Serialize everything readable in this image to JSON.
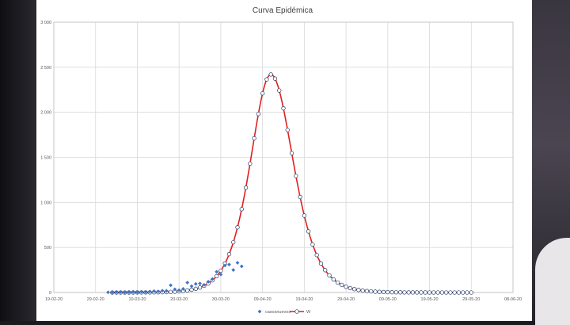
{
  "chart_data": {
    "type": "scatter",
    "title": "Curva Epidémica",
    "xlabel": "",
    "ylabel": "",
    "ylim": [
      0,
      3000
    ],
    "yticks": [
      0,
      500,
      1000,
      1500,
      2000,
      2500,
      3000
    ],
    "ytick_labels": [
      "0",
      "500",
      "1 000",
      "1 500",
      "2 000",
      "2 500",
      "3 000"
    ],
    "xlim": [
      "2020-02-19",
      "2020-06-08"
    ],
    "xticks": [
      "2020-02-19",
      "2020-02-29",
      "2020-03-10",
      "2020-03-20",
      "2020-03-30",
      "2020-04-09",
      "2020-04-19",
      "2020-04-29",
      "2020-05-09",
      "2020-05-19",
      "2020-05-29",
      "2020-06-08"
    ],
    "xtick_labels": [
      "19-02-20",
      "29-02-20",
      "10-03-20",
      "20-03-20",
      "30-03-20",
      "09-04-20",
      "19-04-20",
      "29-04-20",
      "09-05-20",
      "19-05-20",
      "29-05-20",
      "08-06-20"
    ],
    "grid": true,
    "legend_position": "bottom",
    "model": {
      "shape": "asymmetric-logistic-peak",
      "peak": 2420,
      "peak_date": "2020-04-11",
      "rise_scale_days": 3.3,
      "fall_scale_days": 3.6,
      "dates_start": "2020-03-04",
      "dates_end": "2020-05-29"
    },
    "series": [
      {
        "name": "casosnuevos",
        "marker": "diamond",
        "color": "#4472c4",
        "points": [
          [
            "2020-03-03",
            2
          ],
          [
            "2020-03-04",
            1
          ],
          [
            "2020-03-05",
            3
          ],
          [
            "2020-03-06",
            5
          ],
          [
            "2020-03-07",
            2
          ],
          [
            "2020-03-08",
            4
          ],
          [
            "2020-03-09",
            6
          ],
          [
            "2020-03-10",
            3
          ],
          [
            "2020-03-11",
            8
          ],
          [
            "2020-03-12",
            5
          ],
          [
            "2020-03-13",
            10
          ],
          [
            "2020-03-14",
            15
          ],
          [
            "2020-03-15",
            12
          ],
          [
            "2020-03-16",
            20
          ],
          [
            "2020-03-17",
            18
          ],
          [
            "2020-03-18",
            80
          ],
          [
            "2020-03-19",
            35
          ],
          [
            "2020-03-20",
            25
          ],
          [
            "2020-03-21",
            40
          ],
          [
            "2020-03-22",
            110
          ],
          [
            "2020-03-23",
            70
          ],
          [
            "2020-03-24",
            95
          ],
          [
            "2020-03-25",
            100
          ],
          [
            "2020-03-26",
            85
          ],
          [
            "2020-03-27",
            120
          ],
          [
            "2020-03-28",
            150
          ],
          [
            "2020-03-29",
            230
          ],
          [
            "2020-03-30",
            200
          ],
          [
            "2020-03-31",
            300
          ],
          [
            "2020-04-01",
            310
          ],
          [
            "2020-04-02",
            250
          ],
          [
            "2020-04-03",
            330
          ],
          [
            "2020-04-04",
            290
          ]
        ]
      },
      {
        "name": "W",
        "marker": "circle",
        "color": "#e02020",
        "marker_edge_color": "#1f3864"
      }
    ]
  }
}
